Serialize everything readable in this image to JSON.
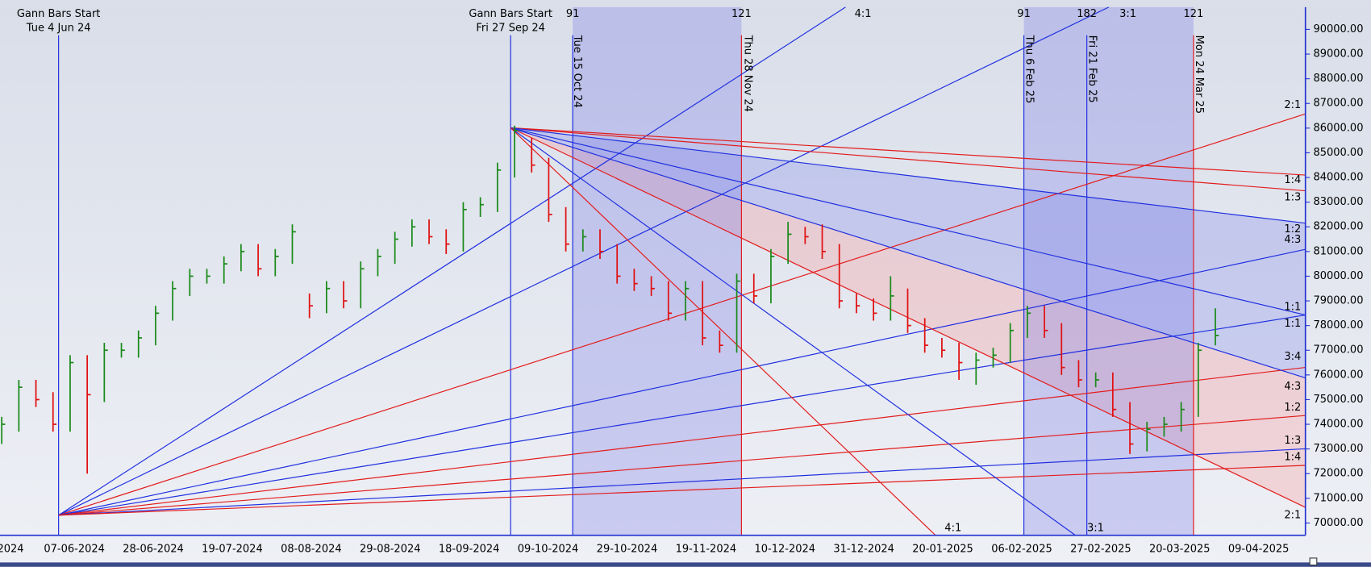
{
  "chart_data": {
    "type": "ohlc",
    "series": {
      "high": [
        74300,
        75800,
        75800,
        75300,
        76800,
        76800,
        77300,
        77300,
        77800,
        78800,
        79800,
        80300,
        80300,
        80800,
        81300,
        81300,
        81100,
        82100,
        79300,
        79800,
        79800,
        80600,
        81100,
        81800,
        82300,
        82300,
        81900,
        83000,
        83200,
        84600,
        86100,
        85600,
        84800,
        82800,
        81900,
        81900,
        81300,
        80300,
        80000,
        79800,
        79800,
        79800,
        77800,
        80100,
        80100,
        81100,
        82200,
        82000,
        82100,
        81300,
        79300,
        79100,
        80000,
        79500,
        78300,
        77500,
        77300,
        76900,
        77100,
        78100,
        78800,
        78800,
        78100,
        76600,
        76100,
        76100,
        74900,
        74100,
        74300,
        74900,
        77300,
        78700
      ],
      "low": [
        73200,
        73700,
        74700,
        73700,
        73700,
        72000,
        74900,
        76700,
        76700,
        77200,
        78200,
        79200,
        79700,
        79700,
        80200,
        80000,
        80000,
        80500,
        78300,
        78500,
        78700,
        78700,
        80000,
        80500,
        81200,
        81300,
        80900,
        81000,
        82400,
        82600,
        84000,
        84200,
        82200,
        81000,
        81000,
        80700,
        79700,
        79400,
        79200,
        78200,
        78200,
        77200,
        76900,
        76900,
        78900,
        78900,
        80500,
        81300,
        80700,
        78700,
        78500,
        78200,
        78200,
        77700,
        76900,
        76700,
        75800,
        75600,
        76300,
        76500,
        77500,
        77500,
        76000,
        75500,
        75500,
        74300,
        72800,
        72900,
        73500,
        73700,
        74300,
        77200
      ],
      "close": [
        74000,
        75500,
        75000,
        74000,
        76500,
        75200,
        77000,
        77000,
        77500,
        78500,
        79500,
        80000,
        80000,
        80500,
        81000,
        80300,
        80800,
        81800,
        78800,
        79500,
        79000,
        80300,
        80800,
        81500,
        82000,
        81600,
        81300,
        82700,
        82900,
        84300,
        85900,
        84500,
        82500,
        81300,
        81600,
        81000,
        80000,
        79700,
        79500,
        78500,
        79500,
        77500,
        77200,
        79800,
        79200,
        80800,
        81700,
        81600,
        81000,
        79000,
        78800,
        78500,
        79200,
        78000,
        77200,
        77000,
        76500,
        76600,
        76800,
        77800,
        78500,
        77800,
        76300,
        75800,
        75800,
        74600,
        73200,
        73800,
        74000,
        74600,
        77000,
        77600
      ],
      "up_color": "#1a8a1a",
      "down_color": "#e01010"
    },
    "x_labels": [
      "2024",
      "07-06-2024",
      "28-06-2024",
      "19-07-2024",
      "08-08-2024",
      "29-08-2024",
      "18-09-2024",
      "09-10-2024",
      "29-10-2024",
      "19-11-2024",
      "10-12-2024",
      "31-12-2024",
      "20-01-2025",
      "06-02-2025",
      "27-02-2025",
      "20-03-2025",
      "09-04-2025"
    ],
    "ylim": [
      69500,
      90900
    ],
    "yticks": [
      {
        "value": 70000,
        "label": "70000.00"
      },
      {
        "value": 71000,
        "label": "71000.00"
      },
      {
        "value": 72000,
        "label": "72000.00"
      },
      {
        "value": 73000,
        "label": "73000.00"
      },
      {
        "value": 74000,
        "label": "74000.00"
      },
      {
        "value": 75000,
        "label": "75000.00"
      },
      {
        "value": 76000,
        "label": "76000.00"
      },
      {
        "value": 77000,
        "label": "77000.00"
      },
      {
        "value": 78000,
        "label": "78000.00"
      },
      {
        "value": 79000,
        "label": "79000.00"
      },
      {
        "value": 80000,
        "label": "80000.00"
      },
      {
        "value": 81000,
        "label": "81000.00"
      },
      {
        "value": 82000,
        "label": "82000.00"
      },
      {
        "value": 83000,
        "label": "83000.00"
      },
      {
        "value": 84000,
        "label": "84000.00"
      },
      {
        "value": 85000,
        "label": "85000.00"
      },
      {
        "value": 86000,
        "label": "86000.00"
      },
      {
        "value": 87000,
        "label": "87000.00"
      },
      {
        "value": 88000,
        "label": "88000.00"
      },
      {
        "value": 89000,
        "label": "89000.00"
      },
      {
        "value": 90000,
        "label": "90000.00"
      }
    ],
    "gann_starts": [
      {
        "title": "Gann Bars Start",
        "date": "Tue 4 Jun 24"
      },
      {
        "title": "Gann Bars Start",
        "date": "Fri 27 Sep 24"
      }
    ],
    "top_labels": [
      "91",
      "121",
      "4:1",
      "91",
      "182",
      "3:1",
      "121"
    ],
    "vertical_dates": [
      "Tue 15 Oct 24",
      "Thu 28 Nov 24",
      "Thu 6 Feb 25",
      "Fri 21 Feb 25",
      "Mon 24 Mar 25"
    ],
    "fan_labels": [
      "2:1",
      "1:4",
      "1:3",
      "1:2",
      "4:3",
      "1:1",
      "1:1",
      "3:4",
      "4:3",
      "1:2",
      "1:3",
      "1:4",
      "2:1"
    ],
    "bottom_labels": [
      "4:1",
      "3:1"
    ]
  }
}
